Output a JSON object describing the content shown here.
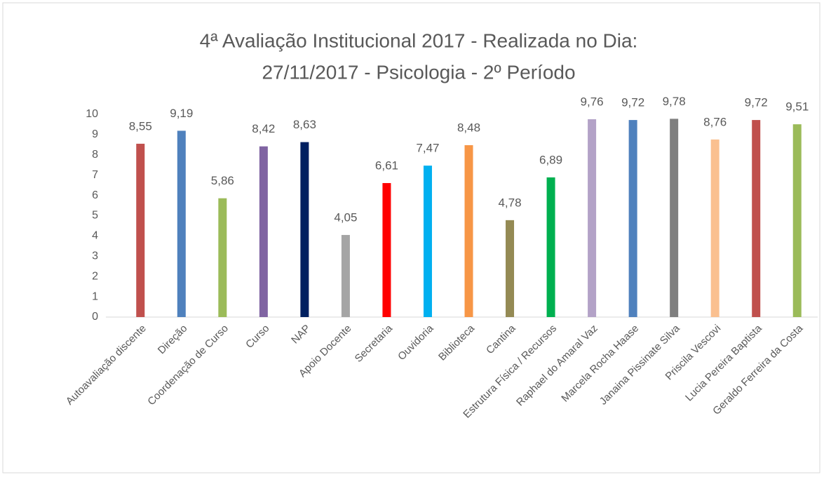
{
  "chart_data": {
    "type": "bar",
    "title": [
      "4ª Avaliação Institucional 2017 - Realizada no Dia:",
      "27/11/2017 - Psicologia - 2º Período"
    ],
    "categories": [
      "Autoavaliação discente",
      "Direção",
      "Coordenação de Curso",
      "Curso",
      "NAP",
      "Apoio Docente",
      "Secretaria",
      "Ouvidoria",
      "Biblioteca",
      "Cantina",
      "Estrutura Física / Recursos",
      "Raphael do Amaral Vaz",
      "Marcela Rocha Haase",
      "Janaina Pissinate Silva",
      "Priscila Vescovi",
      "Lucia Pereira Baptista",
      "Geraldo Ferreira da Costa"
    ],
    "values": [
      8.55,
      9.19,
      5.86,
      8.42,
      8.63,
      4.05,
      6.61,
      7.47,
      8.48,
      4.78,
      6.89,
      9.76,
      9.72,
      9.78,
      8.76,
      9.72,
      9.51
    ],
    "value_labels": [
      "8,55",
      "9,19",
      "5,86",
      "8,42",
      "8,63",
      "4,05",
      "6,61",
      "7,47",
      "8,48",
      "4,78",
      "6,89",
      "9,76",
      "9,72",
      "9,78",
      "8,76",
      "9,72",
      "9,51"
    ],
    "colors": [
      "#c0504d",
      "#4f81bd",
      "#9bbb59",
      "#8064a2",
      "#002060",
      "#a5a5a5",
      "#ff0000",
      "#00b0f0",
      "#f79646",
      "#948a54",
      "#00b050",
      "#b3a2c7",
      "#4f81bd",
      "#7f7f7f",
      "#fac090",
      "#c0504d",
      "#9bbb59"
    ],
    "ylim": [
      0,
      10
    ],
    "yticks": [
      0,
      1,
      2,
      3,
      4,
      5,
      6,
      7,
      8,
      9,
      10
    ],
    "grid": false
  }
}
